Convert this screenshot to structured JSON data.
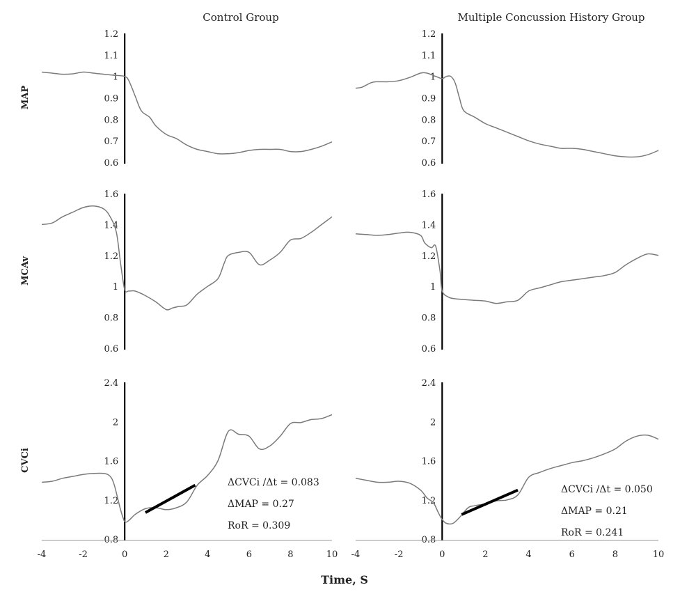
{
  "xlabel": "Time, S",
  "x_ticks": [
    "-4",
    "-2",
    "0",
    "2",
    "4",
    "6",
    "8",
    "10"
  ],
  "columns": [
    {
      "title": "Control Group"
    },
    {
      "title": "Multiple Concussion History Group"
    }
  ],
  "rows": [
    {
      "label": "MAP",
      "ylim": [
        0.6,
        1.2
      ],
      "yticks": [
        "1.2",
        "1.1",
        "1",
        "0.9",
        "0.8",
        "0.7",
        "0.6"
      ]
    },
    {
      "label": "MCAv",
      "ylim": [
        0.6,
        1.6
      ],
      "yticks": [
        "1.6",
        "1.4",
        "1.2",
        "1",
        "0.8",
        "0.6"
      ]
    },
    {
      "label": "CVCi",
      "ylim": [
        0.8,
        2.4
      ],
      "yticks": [
        "2.4",
        "2",
        "1.6",
        "1.2",
        "0.8"
      ]
    }
  ],
  "annotations": [
    {
      "line1": "ΔCVCi /Δt = 0.083",
      "line2": "ΔMAP = 0.27",
      "line3": "RoR = 0.309"
    },
    {
      "line1": "ΔCVCi /Δt = 0.050",
      "line2": "ΔMAP = 0.21",
      "line3": "RoR = 0.241"
    }
  ],
  "chart_data": [
    {
      "type": "line",
      "row": 0,
      "col": 0,
      "title": "Control Group",
      "ylabel": "MAP",
      "xlim": [
        -4,
        10
      ],
      "ylim": [
        0.6,
        1.2
      ],
      "x": [
        -4,
        -3.5,
        -3,
        -2.5,
        -2,
        -1.5,
        -1,
        -0.5,
        0,
        0.2,
        0.5,
        0.8,
        1.2,
        1.5,
        2,
        2.5,
        3,
        3.5,
        4,
        4.5,
        5,
        5.5,
        6,
        6.5,
        7,
        7.5,
        8,
        8.5,
        9,
        9.5,
        10
      ],
      "y": [
        1.02,
        1.015,
        1.01,
        1.012,
        1.02,
        1.015,
        1.01,
        1.005,
        1.0,
        0.98,
        0.91,
        0.84,
        0.81,
        0.77,
        0.73,
        0.71,
        0.68,
        0.66,
        0.65,
        0.64,
        0.64,
        0.645,
        0.655,
        0.66,
        0.66,
        0.66,
        0.65,
        0.65,
        0.66,
        0.675,
        0.695
      ]
    },
    {
      "type": "line",
      "row": 0,
      "col": 1,
      "title": "Multiple Concussion History Group",
      "ylabel": "MAP",
      "xlim": [
        -4,
        10
      ],
      "ylim": [
        0.6,
        1.2
      ],
      "x": [
        -4,
        -3.7,
        -3.3,
        -3,
        -2.5,
        -2,
        -1.5,
        -1,
        -0.7,
        -0.3,
        0,
        0.2,
        0.4,
        0.6,
        0.8,
        1,
        1.5,
        2,
        2.5,
        3,
        3.5,
        4,
        4.5,
        5,
        5.5,
        6,
        6.5,
        7,
        7.5,
        8,
        8.5,
        9,
        9.5,
        10
      ],
      "y": [
        0.945,
        0.95,
        0.97,
        0.975,
        0.975,
        0.98,
        0.995,
        1.015,
        1.015,
        1.0,
        0.99,
        1.0,
        1.0,
        0.97,
        0.9,
        0.84,
        0.81,
        0.78,
        0.76,
        0.74,
        0.72,
        0.7,
        0.685,
        0.675,
        0.665,
        0.665,
        0.66,
        0.65,
        0.64,
        0.63,
        0.625,
        0.625,
        0.635,
        0.655
      ]
    },
    {
      "type": "line",
      "row": 1,
      "col": 0,
      "title": "Control Group",
      "ylabel": "MCAv",
      "xlim": [
        -4,
        10
      ],
      "ylim": [
        0.6,
        1.6
      ],
      "x": [
        -4,
        -3.5,
        -3,
        -2.5,
        -2,
        -1.5,
        -1,
        -0.7,
        -0.4,
        -0.2,
        0,
        0.2,
        0.5,
        1,
        1.5,
        2,
        2.3,
        2.6,
        3,
        3.5,
        4,
        4.5,
        4.8,
        5,
        5.5,
        6,
        6.5,
        7,
        7.5,
        8,
        8.5,
        9,
        9.5,
        10
      ],
      "y": [
        1.4,
        1.41,
        1.45,
        1.48,
        1.51,
        1.52,
        1.5,
        1.45,
        1.35,
        1.15,
        0.98,
        0.97,
        0.97,
        0.94,
        0.9,
        0.85,
        0.86,
        0.87,
        0.88,
        0.95,
        1.0,
        1.05,
        1.15,
        1.2,
        1.22,
        1.22,
        1.14,
        1.17,
        1.22,
        1.3,
        1.31,
        1.35,
        1.4,
        1.45
      ]
    },
    {
      "type": "line",
      "row": 1,
      "col": 1,
      "title": "Multiple Concussion History Group",
      "ylabel": "MCAv",
      "xlim": [
        -4,
        10
      ],
      "ylim": [
        0.6,
        1.6
      ],
      "x": [
        -4,
        -3.5,
        -3,
        -2.5,
        -2,
        -1.5,
        -1,
        -0.8,
        -0.5,
        -0.3,
        -0.1,
        0,
        0.3,
        0.6,
        1,
        1.5,
        2,
        2.5,
        3,
        3.5,
        4,
        4.5,
        5,
        5.5,
        6,
        6.5,
        7,
        7.5,
        8,
        8.5,
        9,
        9.5,
        10
      ],
      "y": [
        1.34,
        1.335,
        1.33,
        1.335,
        1.345,
        1.35,
        1.33,
        1.28,
        1.25,
        1.26,
        1.1,
        0.97,
        0.93,
        0.92,
        0.915,
        0.91,
        0.905,
        0.89,
        0.9,
        0.91,
        0.97,
        0.99,
        1.01,
        1.03,
        1.04,
        1.05,
        1.06,
        1.07,
        1.09,
        1.14,
        1.18,
        1.21,
        1.2
      ]
    },
    {
      "type": "line",
      "row": 2,
      "col": 0,
      "title": "Control Group",
      "ylabel": "CVCi",
      "xlim": [
        -4,
        10
      ],
      "ylim": [
        0.8,
        2.4
      ],
      "x": [
        -4,
        -3.5,
        -3,
        -2.5,
        -2,
        -1.5,
        -1,
        -0.7,
        -0.5,
        -0.2,
        0,
        0.2,
        0.5,
        1,
        1.5,
        2,
        2.5,
        3,
        3.5,
        4,
        4.5,
        5,
        5.5,
        6,
        6.5,
        7,
        7.5,
        8,
        8.5,
        9,
        9.5,
        10
      ],
      "y": [
        1.38,
        1.39,
        1.42,
        1.44,
        1.46,
        1.47,
        1.47,
        1.44,
        1.35,
        1.1,
        0.98,
        0.99,
        1.05,
        1.11,
        1.12,
        1.1,
        1.12,
        1.18,
        1.35,
        1.45,
        1.6,
        1.9,
        1.87,
        1.85,
        1.72,
        1.75,
        1.85,
        1.98,
        1.99,
        2.02,
        2.03,
        2.07
      ]
    },
    {
      "type": "line",
      "row": 2,
      "col": 1,
      "title": "Multiple Concussion History Group",
      "ylabel": "CVCi",
      "xlim": [
        -4,
        10
      ],
      "ylim": [
        0.8,
        2.4
      ],
      "x": [
        -4,
        -3.5,
        -3,
        -2.5,
        -2,
        -1.5,
        -1,
        -0.7,
        -0.4,
        -0.2,
        0,
        0.2,
        0.5,
        0.8,
        1.2,
        1.5,
        2,
        2.5,
        3,
        3.5,
        4,
        4.5,
        5,
        5.5,
        6,
        6.5,
        7,
        7.5,
        8,
        8.5,
        9,
        9.5,
        10
      ],
      "y": [
        1.42,
        1.4,
        1.38,
        1.38,
        1.39,
        1.37,
        1.3,
        1.22,
        1.17,
        1.08,
        1.0,
        0.96,
        0.96,
        1.02,
        1.12,
        1.14,
        1.16,
        1.19,
        1.2,
        1.25,
        1.43,
        1.48,
        1.52,
        1.55,
        1.58,
        1.6,
        1.63,
        1.67,
        1.72,
        1.8,
        1.85,
        1.86,
        1.82
      ]
    }
  ],
  "slope_lines": [
    {
      "col": 0,
      "x": [
        1,
        3.4
      ],
      "y": [
        1.07,
        1.35
      ]
    },
    {
      "col": 1,
      "x": [
        0.9,
        3.5
      ],
      "y": [
        1.05,
        1.3
      ]
    }
  ]
}
